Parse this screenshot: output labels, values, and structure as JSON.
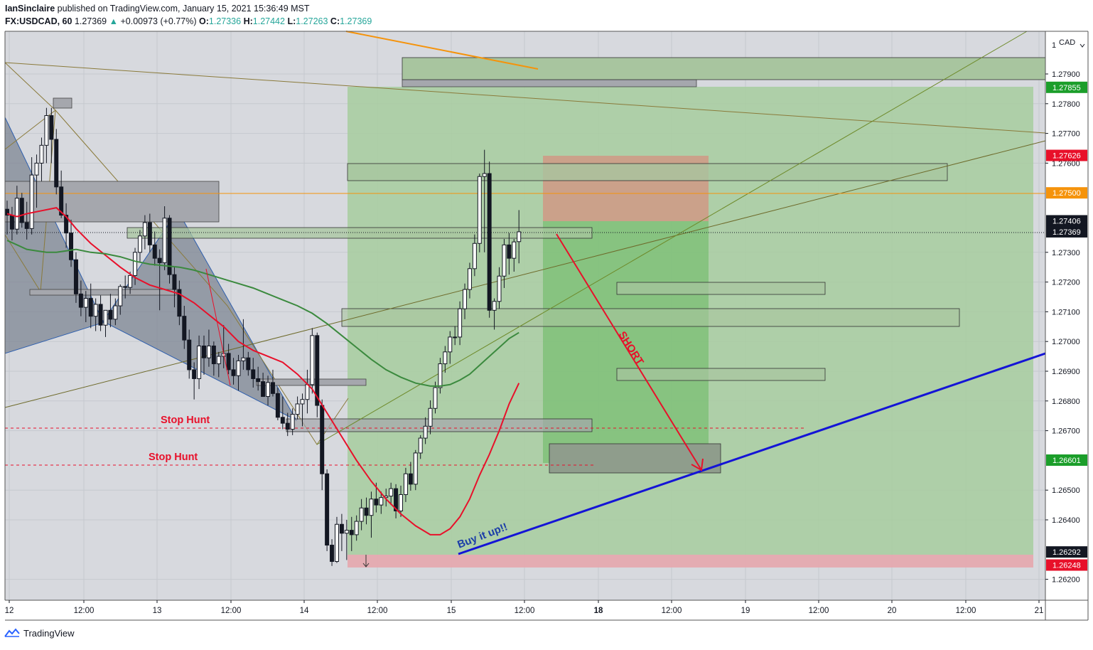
{
  "header": {
    "author": "IanSinclaire",
    "published_text": "published on TradingView.com, January 15, 2021 15:36:49 MST",
    "symbol": "FX:USDCAD, 60",
    "last": "1.27369",
    "change_arrow": "▲",
    "change": "+0.00973 (+0.77%)",
    "o_label": "O:",
    "o_value": "1.27336",
    "h_label": "H:",
    "h_value": "1.27442",
    "l_label": "L:",
    "l_value": "1.27263",
    "c_label": "C:",
    "c_value": "1.27369"
  },
  "footer": {
    "brand": "TradingView",
    "logo_icon": "tradingview-logo-icon"
  },
  "chart_data": {
    "type": "candlestick",
    "currency_label": "CAD",
    "currency_tick": "1",
    "y_ticks": [
      "1.27900",
      "1.27800",
      "1.27700",
      "1.27600",
      "1.27300",
      "1.27200",
      "1.27100",
      "1.27000",
      "1.26900",
      "1.26800",
      "1.26700",
      "1.26500",
      "1.26400",
      "1.26200"
    ],
    "x_ticks": [
      {
        "label": "12",
        "bold": false
      },
      {
        "label": "12:00",
        "bold": false
      },
      {
        "label": "13",
        "bold": false
      },
      {
        "label": "12:00",
        "bold": false
      },
      {
        "label": "14",
        "bold": false
      },
      {
        "label": "12:00",
        "bold": false
      },
      {
        "label": "15",
        "bold": false
      },
      {
        "label": "12:00",
        "bold": false
      },
      {
        "label": "18",
        "bold": true
      },
      {
        "label": "12:00",
        "bold": false
      },
      {
        "label": "19",
        "bold": false
      },
      {
        "label": "12:00",
        "bold": false
      },
      {
        "label": "20",
        "bold": false
      },
      {
        "label": "12:00",
        "bold": false
      },
      {
        "label": "21",
        "bold": false
      }
    ],
    "price_badges": [
      {
        "value": "1.27855",
        "color": "#1b9e2a"
      },
      {
        "value": "1.27626",
        "color": "#e8102a"
      },
      {
        "value": "1.27500",
        "color": "#f5930b"
      },
      {
        "value": "1.27406",
        "color": "#131722"
      },
      {
        "value": "1.27369",
        "color": "#131722"
      },
      {
        "value": "1.26601",
        "color": "#1b9e2a"
      },
      {
        "value": "1.26292",
        "color": "#131722"
      },
      {
        "value": "1.26248",
        "color": "#e8102a"
      }
    ],
    "annotations": {
      "stop_hunt_1": "Stop Hunt",
      "stop_hunt_2": "Stop Hunt",
      "short": "SHORT",
      "buy": "Buy it up!!"
    },
    "colors": {
      "ema_red": "#e8102a",
      "ma_green": "#3b8a3e",
      "trendline_blue": "#1414d6",
      "orange_line": "#f5930b",
      "arrow_red": "#e8102a",
      "label_blue": "#1a3ca8",
      "label_red": "#e8102a"
    },
    "candles": [
      [
        1.27445,
        1.27474,
        1.2736,
        1.27425
      ],
      [
        1.27425,
        1.27453,
        1.2734,
        1.27378
      ],
      [
        1.27378,
        1.27524,
        1.2736,
        1.27482
      ],
      [
        1.27482,
        1.275,
        1.27383,
        1.274
      ],
      [
        1.274,
        1.2747,
        1.27343,
        1.2738
      ],
      [
        1.2738,
        1.2762,
        1.2736,
        1.2756
      ],
      [
        1.2756,
        1.27629,
        1.2745,
        1.276
      ],
      [
        1.276,
        1.27686,
        1.27539,
        1.2766
      ],
      [
        1.2766,
        1.27786,
        1.276,
        1.2776
      ],
      [
        1.2776,
        1.27786,
        1.276,
        1.2768
      ],
      [
        1.2768,
        1.27715,
        1.27495,
        1.2752
      ],
      [
        1.2752,
        1.27575,
        1.27415,
        1.27425
      ],
      [
        1.27425,
        1.27465,
        1.27315,
        1.27365
      ],
      [
        1.27365,
        1.2741,
        1.27251,
        1.27275
      ],
      [
        1.27275,
        1.273,
        1.2713,
        1.2716
      ],
      [
        1.2716,
        1.27205,
        1.27085,
        1.27115
      ],
      [
        1.27115,
        1.2717,
        1.27065,
        1.27145
      ],
      [
        1.27145,
        1.27195,
        1.27045,
        1.27085
      ],
      [
        1.27085,
        1.27145,
        1.27035,
        1.27125
      ],
      [
        1.27125,
        1.27155,
        1.27035,
        1.27055
      ],
      [
        1.27055,
        1.27095,
        1.27015,
        1.27105
      ],
      [
        1.27105,
        1.2716,
        1.27048,
        1.27075
      ],
      [
        1.27075,
        1.27145,
        1.27055,
        1.2712
      ],
      [
        1.2712,
        1.27192,
        1.2709,
        1.27185
      ],
      [
        1.27185,
        1.27222,
        1.27145,
        1.27182
      ],
      [
        1.27182,
        1.27235,
        1.2716,
        1.27222
      ],
      [
        1.27222,
        1.27315,
        1.2719,
        1.273
      ],
      [
        1.273,
        1.27375,
        1.27265,
        1.27355
      ],
      [
        1.27355,
        1.27425,
        1.2731,
        1.274
      ],
      [
        1.274,
        1.2743,
        1.273,
        1.27325
      ],
      [
        1.27325,
        1.2737,
        1.27255,
        1.2728
      ],
      [
        1.2728,
        1.2731,
        1.27105,
        1.27265
      ],
      [
        1.27265,
        1.27455,
        1.2724,
        1.27415
      ],
      [
        1.27415,
        1.27425,
        1.27195,
        1.27225
      ],
      [
        1.27225,
        1.2725,
        1.27115,
        1.27175
      ],
      [
        1.27175,
        1.27205,
        1.27055,
        1.27085
      ],
      [
        1.27085,
        1.2712,
        1.26975,
        1.27005
      ],
      [
        1.27005,
        1.2704,
        1.26875,
        1.26905
      ],
      [
        1.26905,
        1.2693,
        1.26805,
        1.26875
      ],
      [
        1.26875,
        1.2702,
        1.2684,
        1.26985
      ],
      [
        1.26985,
        1.2702,
        1.26888,
        1.26945
      ],
      [
        1.26945,
        1.2704,
        1.26915,
        1.26985
      ],
      [
        1.26985,
        1.27,
        1.26885,
        1.26925
      ],
      [
        1.26925,
        1.26965,
        1.2688,
        1.2695
      ],
      [
        1.2695,
        1.27055,
        1.2691,
        1.2696
      ],
      [
        1.2696,
        1.26992,
        1.2689,
        1.26905
      ],
      [
        1.26905,
        1.26945,
        1.26855,
        1.26885
      ],
      [
        1.26885,
        1.26955,
        1.26835,
        1.26935
      ],
      [
        1.26935,
        1.27075,
        1.26905,
        1.26945
      ],
      [
        1.26945,
        1.26965,
        1.26885,
        1.26905
      ],
      [
        1.26905,
        1.26945,
        1.26845,
        1.26875
      ],
      [
        1.26875,
        1.26915,
        1.26835,
        1.26865
      ],
      [
        1.26865,
        1.26895,
        1.26814,
        1.26815
      ],
      [
        1.26815,
        1.26885,
        1.26785,
        1.26862
      ],
      [
        1.26862,
        1.26905,
        1.26815,
        1.26825
      ],
      [
        1.26825,
        1.26845,
        1.26735,
        1.26745
      ],
      [
        1.26745,
        1.26815,
        1.26705,
        1.26725
      ],
      [
        1.26725,
        1.2676,
        1.26682,
        1.26705
      ],
      [
        1.26705,
        1.26775,
        1.26685,
        1.26755
      ],
      [
        1.26755,
        1.26815,
        1.26738,
        1.2679
      ],
      [
        1.2679,
        1.26825,
        1.26715,
        1.26805
      ],
      [
        1.26805,
        1.26905,
        1.26758,
        1.26855
      ],
      [
        1.26855,
        1.27045,
        1.26825,
        1.2702
      ],
      [
        1.2702,
        1.2703,
        1.26745,
        1.26785
      ],
      [
        1.26785,
        1.26805,
        1.265,
        1.26555
      ],
      [
        1.26555,
        1.2657,
        1.26295,
        1.26315
      ],
      [
        1.26315,
        1.26335,
        1.26245,
        1.2626
      ],
      [
        1.2626,
        1.2641,
        1.26255,
        1.26385
      ],
      [
        1.26385,
        1.2642,
        1.26295,
        1.26355
      ],
      [
        1.26355,
        1.264,
        1.26265,
        1.26365
      ],
      [
        1.26365,
        1.2641,
        1.26295,
        1.2635
      ],
      [
        1.2635,
        1.26415,
        1.2633,
        1.26395
      ],
      [
        1.26395,
        1.2647,
        1.26365,
        1.2644
      ],
      [
        1.2644,
        1.26475,
        1.26385,
        1.26415
      ],
      [
        1.26415,
        1.26495,
        1.2634,
        1.2647
      ],
      [
        1.2647,
        1.26525,
        1.26425,
        1.2645
      ],
      [
        1.2645,
        1.26495,
        1.2642,
        1.26475
      ],
      [
        1.26475,
        1.26505,
        1.26445,
        1.2648
      ],
      [
        1.2648,
        1.26525,
        1.2645,
        1.26505
      ],
      [
        1.26505,
        1.2652,
        1.26405,
        1.2643
      ],
      [
        1.2643,
        1.26515,
        1.2641,
        1.26485
      ],
      [
        1.26485,
        1.26575,
        1.2646,
        1.26555
      ],
      [
        1.26555,
        1.26595,
        1.26498,
        1.2652
      ],
      [
        1.2652,
        1.26635,
        1.265,
        1.26625
      ],
      [
        1.26625,
        1.26685,
        1.26605,
        1.26675
      ],
      [
        1.26675,
        1.26745,
        1.26655,
        1.26715
      ],
      [
        1.26715,
        1.26802,
        1.26688,
        1.26775
      ],
      [
        1.26775,
        1.26865,
        1.26758,
        1.26845
      ],
      [
        1.26845,
        1.26945,
        1.26825,
        1.26925
      ],
      [
        1.26925,
        1.26985,
        1.26895,
        1.26965
      ],
      [
        1.26965,
        1.27035,
        1.26925,
        1.27015
      ],
      [
        1.27015,
        1.27052,
        1.26988,
        1.27015
      ],
      [
        1.27015,
        1.27135,
        1.26988,
        1.2711
      ],
      [
        1.2711,
        1.27195,
        1.27075,
        1.27175
      ],
      [
        1.27175,
        1.27265,
        1.27145,
        1.27245
      ],
      [
        1.27245,
        1.2736,
        1.2722,
        1.2733
      ],
      [
        1.2733,
        1.27565,
        1.273,
        1.27555
      ],
      [
        1.27555,
        1.27645,
        1.273,
        1.27565
      ],
      [
        1.27565,
        1.27605,
        1.2708,
        1.27105
      ],
      [
        1.27105,
        1.27145,
        1.2704,
        1.27135
      ],
      [
        1.27135,
        1.2725,
        1.2711,
        1.2722
      ],
      [
        1.2722,
        1.27345,
        1.2718,
        1.27325
      ],
      [
        1.27325,
        1.27365,
        1.27225,
        1.2728
      ],
      [
        1.2728,
        1.27345,
        1.27235,
        1.27335
      ],
      [
        1.27336,
        1.27442,
        1.27263,
        1.27369
      ]
    ],
    "ema_red": [
      [
        0,
        1.2743
      ],
      [
        2,
        1.2742
      ],
      [
        4,
        1.2743
      ],
      [
        7,
        1.2744
      ],
      [
        10,
        1.2745
      ],
      [
        12,
        1.2742
      ],
      [
        14,
        1.2738
      ],
      [
        17,
        1.2733
      ],
      [
        20,
        1.2729
      ],
      [
        23,
        1.2725
      ],
      [
        26,
        1.27215
      ],
      [
        29,
        1.2719
      ],
      [
        32,
        1.27175
      ],
      [
        35,
        1.2716
      ],
      [
        38,
        1.2713
      ],
      [
        41,
        1.2709
      ],
      [
        44,
        1.2705
      ],
      [
        47,
        1.27
      ],
      [
        50,
        1.2697
      ],
      [
        53,
        1.2695
      ],
      [
        56,
        1.2693
      ],
      [
        59,
        1.2689
      ],
      [
        62,
        1.2684
      ],
      [
        65,
        1.2676
      ],
      [
        68,
        1.2668
      ],
      [
        71,
        1.266
      ],
      [
        74,
        1.2653
      ],
      [
        77,
        1.2647
      ],
      [
        80,
        1.2642
      ],
      [
        83,
        1.2638
      ],
      [
        86,
        1.2635
      ],
      [
        88,
        1.2635
      ],
      [
        90,
        1.2637
      ],
      [
        92,
        1.2641
      ],
      [
        94,
        1.2647
      ],
      [
        96,
        1.2655
      ],
      [
        98,
        1.2662
      ],
      [
        100,
        1.267
      ],
      [
        102,
        1.2679
      ],
      [
        104,
        1.2686
      ]
    ],
    "ma_green": [
      [
        0,
        1.2734
      ],
      [
        2,
        1.27325
      ],
      [
        4,
        1.2731
      ],
      [
        6,
        1.27305
      ],
      [
        8,
        1.273
      ],
      [
        10,
        1.273
      ],
      [
        12,
        1.27305
      ],
      [
        14,
        1.2731
      ],
      [
        17,
        1.273
      ],
      [
        20,
        1.27295
      ],
      [
        23,
        1.27285
      ],
      [
        26,
        1.2727
      ],
      [
        29,
        1.2726
      ],
      [
        32,
        1.27255
      ],
      [
        35,
        1.2725
      ],
      [
        38,
        1.2724
      ],
      [
        41,
        1.27225
      ],
      [
        44,
        1.2721
      ],
      [
        47,
        1.27195
      ],
      [
        50,
        1.2718
      ],
      [
        53,
        1.2716
      ],
      [
        56,
        1.2714
      ],
      [
        59,
        1.2712
      ],
      [
        62,
        1.27095
      ],
      [
        65,
        1.2706
      ],
      [
        68,
        1.2702
      ],
      [
        71,
        1.2698
      ],
      [
        74,
        1.2694
      ],
      [
        77,
        1.26905
      ],
      [
        80,
        1.2688
      ],
      [
        83,
        1.2686
      ],
      [
        86,
        1.2685
      ],
      [
        88,
        1.2685
      ],
      [
        90,
        1.26855
      ],
      [
        92,
        1.2687
      ],
      [
        94,
        1.2689
      ],
      [
        96,
        1.2692
      ],
      [
        98,
        1.2695
      ],
      [
        100,
        1.2698
      ],
      [
        102,
        1.2701
      ],
      [
        104,
        1.2703
      ]
    ]
  }
}
